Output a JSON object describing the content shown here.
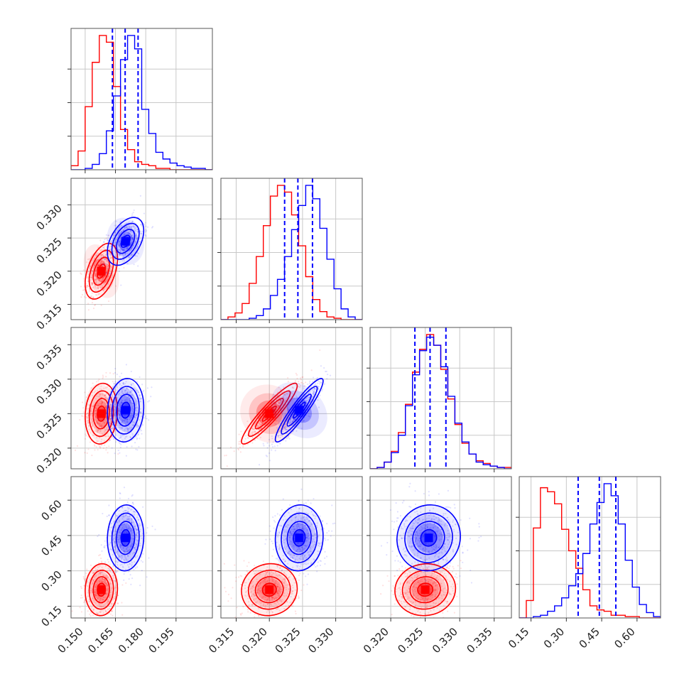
{
  "chart_data": {
    "type": "scatter",
    "subtype": "corner-plot",
    "title": "",
    "grid": true,
    "legend": "none",
    "colors": {
      "series_a": "#ff0000",
      "series_b": "#0000ff",
      "quantiles": "#0000ff"
    },
    "parameters": [
      {
        "range": [
          0.143,
          0.213
        ],
        "ticks": [
          0.15,
          0.165,
          0.18,
          0.195
        ],
        "tick_labels": [
          "0.150",
          "0.165",
          "0.180",
          "0.195"
        ]
      },
      {
        "range": [
          0.3127,
          0.334
        ],
        "ticks": [
          0.315,
          0.32,
          0.325,
          0.33
        ],
        "tick_labels": [
          "0.315",
          "0.320",
          "0.325",
          "0.330"
        ]
      },
      {
        "range": [
          0.317,
          0.3375
        ],
        "ticks": [
          0.32,
          0.325,
          0.33,
          0.335
        ],
        "tick_labels": [
          "0.320",
          "0.325",
          "0.330",
          "0.335"
        ]
      },
      {
        "range": [
          0.1,
          0.7
        ],
        "ticks": [
          0.15,
          0.3,
          0.45,
          0.6
        ],
        "tick_labels": [
          "0.15",
          "0.30",
          "0.45",
          "0.60"
        ]
      }
    ],
    "series": [
      {
        "name": "",
        "color": "#ff0000",
        "means": [
          0.158,
          0.32,
          0.325,
          0.22
        ],
        "sigmas": [
          0.004,
          0.0021,
          0.0022,
          0.055
        ]
      },
      {
        "name": "",
        "color": "#0000ff",
        "means": [
          0.17,
          0.3245,
          0.3255,
          0.44
        ],
        "sigmas": [
          0.0045,
          0.0018,
          0.0023,
          0.07
        ]
      }
    ],
    "pairs": [
      {
        "x": 0,
        "y": 1,
        "red_corr": 0.45,
        "blue_corr": 0.45
      },
      {
        "x": 0,
        "y": 2,
        "red_corr": 0.1,
        "blue_corr": 0.1
      },
      {
        "x": 1,
        "y": 2,
        "red_corr": 0.92,
        "blue_corr": 0.92
      },
      {
        "x": 0,
        "y": 3,
        "red_corr": 0.05,
        "blue_corr": 0.05
      },
      {
        "x": 1,
        "y": 3,
        "red_corr": 0.05,
        "blue_corr": 0.05
      },
      {
        "x": 2,
        "y": 3,
        "red_corr": 0.05,
        "blue_corr": 0.05
      }
    ],
    "quantile_lines": [
      [
        0.1635,
        0.1698,
        0.1762
      ],
      [
        0.3223,
        0.3243,
        0.3265
      ],
      [
        0.3235,
        0.3257,
        0.328
      ],
      [
        0.35,
        0.44,
        0.51
      ]
    ],
    "histograms": [
      {
        "red": [
          0.03,
          0.14,
          0.47,
          0.8,
          1.0,
          0.95,
          0.62,
          0.3,
          0.15,
          0.06,
          0.04,
          0.03,
          0.01,
          0.01,
          0.0,
          0.0,
          0.0,
          0.0,
          0.0,
          0.0
        ],
        "blue": [
          0.0,
          0.0,
          0.01,
          0.04,
          0.12,
          0.29,
          0.55,
          0.82,
          1.0,
          0.9,
          0.45,
          0.27,
          0.13,
          0.08,
          0.05,
          0.03,
          0.02,
          0.01,
          0.01,
          0.0
        ]
      },
      {
        "red": [
          0.0,
          0.02,
          0.05,
          0.12,
          0.27,
          0.47,
          0.7,
          0.92,
          1.0,
          0.95,
          0.78,
          0.55,
          0.32,
          0.15,
          0.06,
          0.02,
          0.01,
          0.0,
          0.0,
          0.0
        ],
        "blue": [
          0.0,
          0.0,
          0.0,
          0.0,
          0.01,
          0.03,
          0.08,
          0.18,
          0.3,
          0.47,
          0.67,
          0.85,
          1.0,
          0.9,
          0.68,
          0.45,
          0.23,
          0.08,
          0.02,
          0.0
        ]
      },
      {
        "red": [
          0.0,
          0.01,
          0.05,
          0.13,
          0.27,
          0.48,
          0.72,
          0.89,
          1.0,
          0.92,
          0.74,
          0.52,
          0.33,
          0.19,
          0.11,
          0.06,
          0.04,
          0.02,
          0.01,
          0.01
        ],
        "blue": [
          0.0,
          0.01,
          0.05,
          0.12,
          0.25,
          0.47,
          0.7,
          0.88,
          0.98,
          0.92,
          0.76,
          0.54,
          0.34,
          0.2,
          0.11,
          0.05,
          0.03,
          0.02,
          0.01,
          0.0
        ]
      },
      {
        "red": [
          0.0,
          0.13,
          0.67,
          0.97,
          0.94,
          0.85,
          0.66,
          0.5,
          0.37,
          0.21,
          0.09,
          0.06,
          0.05,
          0.02,
          0.02,
          0.01,
          0.01,
          0.0,
          0.0,
          0.0
        ],
        "blue": [
          0.0,
          0.0,
          0.01,
          0.02,
          0.05,
          0.09,
          0.15,
          0.24,
          0.33,
          0.48,
          0.7,
          0.86,
          1.0,
          0.91,
          0.7,
          0.43,
          0.23,
          0.1,
          0.04,
          0.01
        ]
      }
    ]
  }
}
